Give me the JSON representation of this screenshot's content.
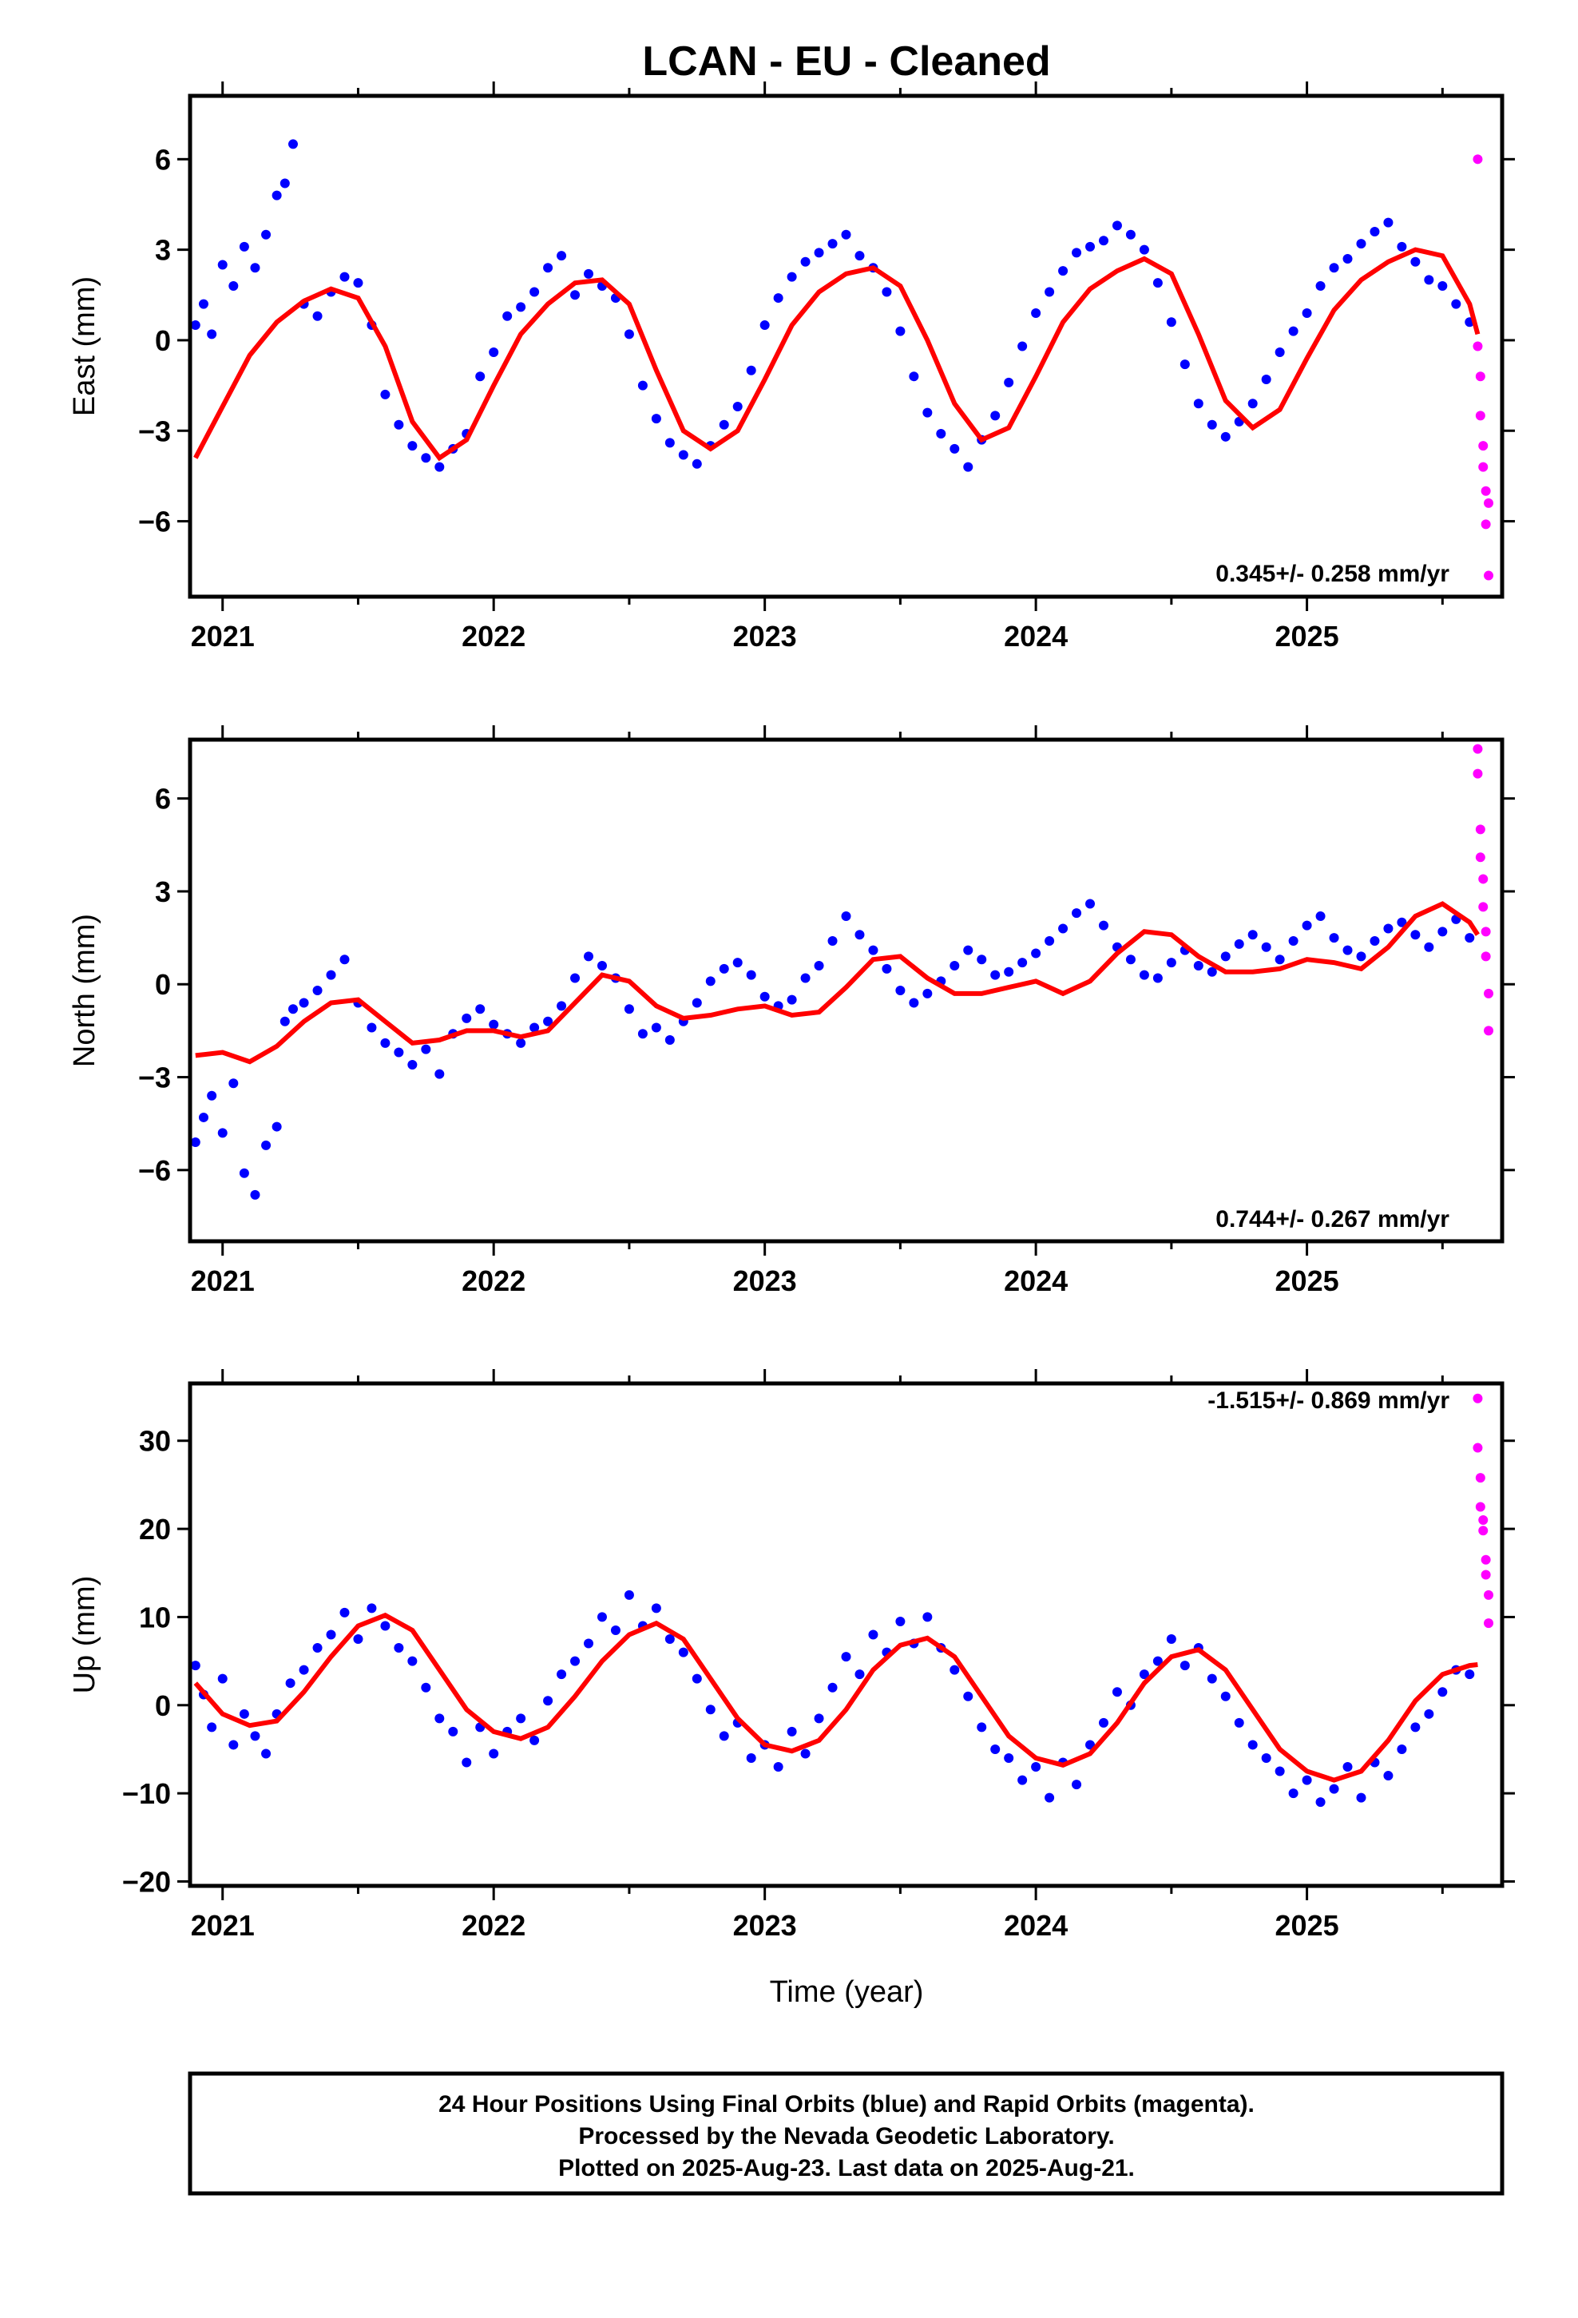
{
  "title": "LCAN  - EU - Cleaned",
  "xlabel": "Time (year)",
  "footer": {
    "line1": "24 Hour Positions Using Final Orbits (blue) and Rapid Orbits (magenta).",
    "line2": "Processed by the Nevada Geodetic Laboratory.",
    "line3": "Plotted on 2025-Aug-23. Last data on 2025-Aug-21."
  },
  "colors": {
    "final": "#0000ff",
    "rapid": "#ff00ff",
    "model": "#ff0000",
    "frame": "#000000"
  },
  "chart_data": [
    {
      "type": "scatter",
      "component": "east",
      "ylabel": "East (mm)",
      "rate": "0.345+/- 0.258 mm/yr",
      "xlim": [
        2020.88,
        2025.72
      ],
      "ylim": [
        -8.5,
        8.1
      ],
      "xticks": [
        2021,
        2022,
        2023,
        2024,
        2025
      ],
      "yticks": [
        -6,
        -3,
        0,
        3,
        6
      ],
      "ytick_labels": [
        "−6",
        "−3",
        "0",
        "3",
        "6"
      ],
      "model": {
        "x": [
          2020.9,
          2021.0,
          2021.1,
          2021.2,
          2021.3,
          2021.4,
          2021.5,
          2021.6,
          2021.7,
          2021.8,
          2021.9,
          2022.0,
          2022.1,
          2022.2,
          2022.3,
          2022.4,
          2022.5,
          2022.6,
          2022.7,
          2022.8,
          2022.9,
          2023.0,
          2023.1,
          2023.2,
          2023.3,
          2023.4,
          2023.5,
          2023.6,
          2023.7,
          2023.8,
          2023.9,
          2024.0,
          2024.1,
          2024.2,
          2024.3,
          2024.4,
          2024.5,
          2024.6,
          2024.7,
          2024.8,
          2024.9,
          2025.0,
          2025.1,
          2025.2,
          2025.3,
          2025.4,
          2025.5,
          2025.6,
          2025.63
        ],
        "y": [
          -3.9,
          -2.2,
          -0.5,
          0.6,
          1.3,
          1.7,
          1.4,
          -0.2,
          -2.7,
          -3.9,
          -3.3,
          -1.5,
          0.2,
          1.2,
          1.9,
          2.0,
          1.2,
          -1.0,
          -3.0,
          -3.6,
          -3.0,
          -1.3,
          0.5,
          1.6,
          2.2,
          2.4,
          1.8,
          0.0,
          -2.1,
          -3.3,
          -2.9,
          -1.2,
          0.6,
          1.7,
          2.3,
          2.7,
          2.2,
          0.2,
          -2.0,
          -2.9,
          -2.3,
          -0.6,
          1.0,
          2.0,
          2.6,
          3.0,
          2.8,
          1.2,
          0.2
        ]
      },
      "final": {
        "x": [
          2020.9,
          2020.93,
          2020.96,
          2021.0,
          2021.04,
          2021.08,
          2021.12,
          2021.16,
          2021.2,
          2021.23,
          2021.26,
          2021.3,
          2021.35,
          2021.4,
          2021.45,
          2021.5,
          2021.55,
          2021.6,
          2021.65,
          2021.7,
          2021.75,
          2021.8,
          2021.85,
          2021.9,
          2021.95,
          2022.0,
          2022.05,
          2022.1,
          2022.15,
          2022.2,
          2022.25,
          2022.3,
          2022.35,
          2022.4,
          2022.45,
          2022.5,
          2022.55,
          2022.6,
          2022.65,
          2022.7,
          2022.75,
          2022.8,
          2022.85,
          2022.9,
          2022.95,
          2023.0,
          2023.05,
          2023.1,
          2023.15,
          2023.2,
          2023.25,
          2023.3,
          2023.35,
          2023.4,
          2023.45,
          2023.5,
          2023.55,
          2023.6,
          2023.65,
          2023.7,
          2023.75,
          2023.8,
          2023.85,
          2023.9,
          2023.95,
          2024.0,
          2024.05,
          2024.1,
          2024.15,
          2024.2,
          2024.25,
          2024.3,
          2024.35,
          2024.4,
          2024.45,
          2024.5,
          2024.55,
          2024.6,
          2024.65,
          2024.7,
          2024.75,
          2024.8,
          2024.85,
          2024.9,
          2024.95,
          2025.0,
          2025.05,
          2025.1,
          2025.15,
          2025.2,
          2025.25,
          2025.3,
          2025.35,
          2025.4,
          2025.45,
          2025.5,
          2025.55,
          2025.6
        ],
        "y": [
          0.5,
          1.2,
          0.2,
          2.5,
          1.8,
          3.1,
          2.4,
          3.5,
          4.8,
          5.2,
          6.5,
          1.2,
          0.8,
          1.6,
          2.1,
          1.9,
          0.5,
          -1.8,
          -2.8,
          -3.5,
          -3.9,
          -4.2,
          -3.6,
          -3.1,
          -1.2,
          -0.4,
          0.8,
          1.1,
          1.6,
          2.4,
          2.8,
          1.5,
          2.2,
          1.8,
          1.4,
          0.2,
          -1.5,
          -2.6,
          -3.4,
          -3.8,
          -4.1,
          -3.5,
          -2.8,
          -2.2,
          -1.0,
          0.5,
          1.4,
          2.1,
          2.6,
          2.9,
          3.2,
          3.5,
          2.8,
          2.4,
          1.6,
          0.3,
          -1.2,
          -2.4,
          -3.1,
          -3.6,
          -4.2,
          -3.3,
          -2.5,
          -1.4,
          -0.2,
          0.9,
          1.6,
          2.3,
          2.9,
          3.1,
          3.3,
          3.8,
          3.5,
          3.0,
          1.9,
          0.6,
          -0.8,
          -2.1,
          -2.8,
          -3.2,
          -2.7,
          -2.1,
          -1.3,
          -0.4,
          0.3,
          0.9,
          1.8,
          2.4,
          2.7,
          3.2,
          3.6,
          3.9,
          3.1,
          2.6,
          2.0,
          1.8,
          1.2,
          0.6
        ]
      },
      "rapid": {
        "x": [
          2025.63,
          2025.63,
          2025.64,
          2025.64,
          2025.65,
          2025.65,
          2025.66,
          2025.66,
          2025.67,
          2025.67
        ],
        "y": [
          6.0,
          -0.2,
          -1.2,
          -2.5,
          -3.5,
          -4.2,
          -5.0,
          -6.1,
          -5.4,
          -7.8
        ]
      }
    },
    {
      "type": "scatter",
      "component": "north",
      "ylabel": "North (mm)",
      "rate": "0.744+/- 0.267 mm/yr",
      "xlim": [
        2020.88,
        2025.72
      ],
      "ylim": [
        -8.3,
        7.9
      ],
      "xticks": [
        2021,
        2022,
        2023,
        2024,
        2025
      ],
      "yticks": [
        -6,
        -3,
        0,
        3,
        6
      ],
      "ytick_labels": [
        "−6",
        "−3",
        "0",
        "3",
        "6"
      ],
      "model": {
        "x": [
          2020.9,
          2021.0,
          2021.1,
          2021.2,
          2021.3,
          2021.4,
          2021.5,
          2021.6,
          2021.7,
          2021.8,
          2021.9,
          2022.0,
          2022.1,
          2022.2,
          2022.3,
          2022.4,
          2022.5,
          2022.6,
          2022.7,
          2022.8,
          2022.9,
          2023.0,
          2023.1,
          2023.2,
          2023.3,
          2023.4,
          2023.5,
          2023.6,
          2023.7,
          2023.8,
          2023.9,
          2024.0,
          2024.1,
          2024.2,
          2024.3,
          2024.4,
          2024.5,
          2024.6,
          2024.7,
          2024.8,
          2024.9,
          2025.0,
          2025.1,
          2025.2,
          2025.3,
          2025.4,
          2025.5,
          2025.6,
          2025.63
        ],
        "y": [
          -2.3,
          -2.2,
          -2.5,
          -2.0,
          -1.2,
          -0.6,
          -0.5,
          -1.2,
          -1.9,
          -1.8,
          -1.5,
          -1.5,
          -1.7,
          -1.5,
          -0.6,
          0.3,
          0.1,
          -0.7,
          -1.1,
          -1.0,
          -0.8,
          -0.7,
          -1.0,
          -0.9,
          -0.1,
          0.8,
          0.9,
          0.2,
          -0.3,
          -0.3,
          -0.1,
          0.1,
          -0.3,
          0.1,
          1.0,
          1.7,
          1.6,
          0.9,
          0.4,
          0.4,
          0.5,
          0.8,
          0.7,
          0.5,
          1.2,
          2.2,
          2.6,
          2.0,
          1.6
        ]
      },
      "final": {
        "x": [
          2020.9,
          2020.93,
          2020.96,
          2021.0,
          2021.04,
          2021.08,
          2021.12,
          2021.16,
          2021.2,
          2021.23,
          2021.26,
          2021.3,
          2021.35,
          2021.4,
          2021.45,
          2021.5,
          2021.55,
          2021.6,
          2021.65,
          2021.7,
          2021.75,
          2021.8,
          2021.85,
          2021.9,
          2021.95,
          2022.0,
          2022.05,
          2022.1,
          2022.15,
          2022.2,
          2022.25,
          2022.3,
          2022.35,
          2022.4,
          2022.45,
          2022.5,
          2022.55,
          2022.6,
          2022.65,
          2022.7,
          2022.75,
          2022.8,
          2022.85,
          2022.9,
          2022.95,
          2023.0,
          2023.05,
          2023.1,
          2023.15,
          2023.2,
          2023.25,
          2023.3,
          2023.35,
          2023.4,
          2023.45,
          2023.5,
          2023.55,
          2023.6,
          2023.65,
          2023.7,
          2023.75,
          2023.8,
          2023.85,
          2023.9,
          2023.95,
          2024.0,
          2024.05,
          2024.1,
          2024.15,
          2024.2,
          2024.25,
          2024.3,
          2024.35,
          2024.4,
          2024.45,
          2024.5,
          2024.55,
          2024.6,
          2024.65,
          2024.7,
          2024.75,
          2024.8,
          2024.85,
          2024.9,
          2024.95,
          2025.0,
          2025.05,
          2025.1,
          2025.15,
          2025.2,
          2025.25,
          2025.3,
          2025.35,
          2025.4,
          2025.45,
          2025.5,
          2025.55,
          2025.6
        ],
        "y": [
          -5.1,
          -4.3,
          -3.6,
          -4.8,
          -3.2,
          -6.1,
          -6.8,
          -5.2,
          -4.6,
          -1.2,
          -0.8,
          -0.6,
          -0.2,
          0.3,
          0.8,
          -0.6,
          -1.4,
          -1.9,
          -2.2,
          -2.6,
          -2.1,
          -2.9,
          -1.6,
          -1.1,
          -0.8,
          -1.3,
          -1.6,
          -1.9,
          -1.4,
          -1.2,
          -0.7,
          0.2,
          0.9,
          0.6,
          0.2,
          -0.8,
          -1.6,
          -1.4,
          -1.8,
          -1.2,
          -0.6,
          0.1,
          0.5,
          0.7,
          0.3,
          -0.4,
          -0.7,
          -0.5,
          0.2,
          0.6,
          1.4,
          2.2,
          1.6,
          1.1,
          0.5,
          -0.2,
          -0.6,
          -0.3,
          0.1,
          0.6,
          1.1,
          0.8,
          0.3,
          0.4,
          0.7,
          1.0,
          1.4,
          1.8,
          2.3,
          2.6,
          1.9,
          1.2,
          0.8,
          0.3,
          0.2,
          0.7,
          1.1,
          0.6,
          0.4,
          0.9,
          1.3,
          1.6,
          1.2,
          0.8,
          1.4,
          1.9,
          2.2,
          1.5,
          1.1,
          0.9,
          1.4,
          1.8,
          2.0,
          1.6,
          1.2,
          1.7,
          2.1,
          1.5
        ]
      },
      "rapid": {
        "x": [
          2025.63,
          2025.63,
          2025.64,
          2025.64,
          2025.65,
          2025.65,
          2025.66,
          2025.66,
          2025.67,
          2025.67
        ],
        "y": [
          7.6,
          6.8,
          5.0,
          4.1,
          3.4,
          2.5,
          1.7,
          0.9,
          -0.3,
          -1.5
        ]
      }
    },
    {
      "type": "scatter",
      "component": "up",
      "ylabel": "Up (mm)",
      "rate": "-1.515+/- 0.869 mm/yr",
      "xlim": [
        2020.88,
        2025.72
      ],
      "ylim": [
        -20.5,
        36.5
      ],
      "xticks": [
        2021,
        2022,
        2023,
        2024,
        2025
      ],
      "yticks": [
        -20,
        -10,
        0,
        10,
        20,
        30
      ],
      "ytick_labels": [
        "−20",
        "−10",
        "0",
        "10",
        "20",
        "30"
      ],
      "model": {
        "x": [
          2020.9,
          2021.0,
          2021.1,
          2021.2,
          2021.3,
          2021.4,
          2021.5,
          2021.6,
          2021.7,
          2021.8,
          2021.9,
          2022.0,
          2022.1,
          2022.2,
          2022.3,
          2022.4,
          2022.5,
          2022.6,
          2022.7,
          2022.8,
          2022.9,
          2023.0,
          2023.1,
          2023.2,
          2023.3,
          2023.4,
          2023.5,
          2023.6,
          2023.7,
          2023.8,
          2023.9,
          2024.0,
          2024.1,
          2024.2,
          2024.3,
          2024.4,
          2024.5,
          2024.6,
          2024.7,
          2024.8,
          2024.9,
          2025.0,
          2025.1,
          2025.2,
          2025.3,
          2025.4,
          2025.5,
          2025.6,
          2025.63
        ],
        "y": [
          2.5,
          -1.0,
          -2.3,
          -1.8,
          1.5,
          5.5,
          9.0,
          10.2,
          8.5,
          4.0,
          -0.5,
          -3.0,
          -3.8,
          -2.5,
          1.0,
          5.0,
          8.0,
          9.3,
          7.5,
          3.0,
          -1.5,
          -4.5,
          -5.2,
          -4.0,
          -0.5,
          4.0,
          6.8,
          7.6,
          5.5,
          1.0,
          -3.5,
          -6.0,
          -6.8,
          -5.5,
          -2.0,
          2.5,
          5.5,
          6.3,
          4.0,
          -0.5,
          -5.0,
          -7.5,
          -8.5,
          -7.5,
          -4.0,
          0.5,
          3.5,
          4.5,
          4.6
        ]
      },
      "final": {
        "x": [
          2020.9,
          2020.93,
          2020.96,
          2021.0,
          2021.04,
          2021.08,
          2021.12,
          2021.16,
          2021.2,
          2021.25,
          2021.3,
          2021.35,
          2021.4,
          2021.45,
          2021.5,
          2021.55,
          2021.6,
          2021.65,
          2021.7,
          2021.75,
          2021.8,
          2021.85,
          2021.9,
          2021.95,
          2022.0,
          2022.05,
          2022.1,
          2022.15,
          2022.2,
          2022.25,
          2022.3,
          2022.35,
          2022.4,
          2022.45,
          2022.5,
          2022.55,
          2022.6,
          2022.65,
          2022.7,
          2022.75,
          2022.8,
          2022.85,
          2022.9,
          2022.95,
          2023.0,
          2023.05,
          2023.1,
          2023.15,
          2023.2,
          2023.25,
          2023.3,
          2023.35,
          2023.4,
          2023.45,
          2023.5,
          2023.55,
          2023.6,
          2023.65,
          2023.7,
          2023.75,
          2023.8,
          2023.85,
          2023.9,
          2023.95,
          2024.0,
          2024.05,
          2024.1,
          2024.15,
          2024.2,
          2024.25,
          2024.3,
          2024.35,
          2024.4,
          2024.45,
          2024.5,
          2024.55,
          2024.6,
          2024.65,
          2024.7,
          2024.75,
          2024.8,
          2024.85,
          2024.9,
          2024.95,
          2025.0,
          2025.05,
          2025.1,
          2025.15,
          2025.2,
          2025.25,
          2025.3,
          2025.35,
          2025.4,
          2025.45,
          2025.5,
          2025.55,
          2025.6
        ],
        "y": [
          4.5,
          1.2,
          -2.5,
          3.0,
          -4.5,
          -1.0,
          -3.5,
          -5.5,
          -1.0,
          2.5,
          4.0,
          6.5,
          8.0,
          10.5,
          7.5,
          11.0,
          9.0,
          6.5,
          5.0,
          2.0,
          -1.5,
          -3.0,
          -6.5,
          -2.5,
          -5.5,
          -3.0,
          -1.5,
          -4.0,
          0.5,
          3.5,
          5.0,
          7.0,
          10.0,
          8.5,
          12.5,
          9.0,
          11.0,
          7.5,
          6.0,
          3.0,
          -0.5,
          -3.5,
          -2.0,
          -6.0,
          -4.5,
          -7.0,
          -3.0,
          -5.5,
          -1.5,
          2.0,
          5.5,
          3.5,
          8.0,
          6.0,
          9.5,
          7.0,
          10.0,
          6.5,
          4.0,
          1.0,
          -2.5,
          -5.0,
          -6.0,
          -8.5,
          -7.0,
          -10.5,
          -6.5,
          -9.0,
          -4.5,
          -2.0,
          1.5,
          0.0,
          3.5,
          5.0,
          7.5,
          4.5,
          6.5,
          3.0,
          1.0,
          -2.0,
          -4.5,
          -6.0,
          -7.5,
          -10.0,
          -8.5,
          -11.0,
          -9.5,
          -7.0,
          -10.5,
          -6.5,
          -8.0,
          -5.0,
          -2.5,
          -1.0,
          1.5,
          4.0,
          3.5
        ]
      },
      "rapid": {
        "x": [
          2025.63,
          2025.63,
          2025.64,
          2025.64,
          2025.65,
          2025.65,
          2025.66,
          2025.66,
          2025.67,
          2025.67
        ],
        "y": [
          34.8,
          29.2,
          25.8,
          22.5,
          21.0,
          19.8,
          16.5,
          14.8,
          12.5,
          9.3
        ]
      }
    }
  ]
}
